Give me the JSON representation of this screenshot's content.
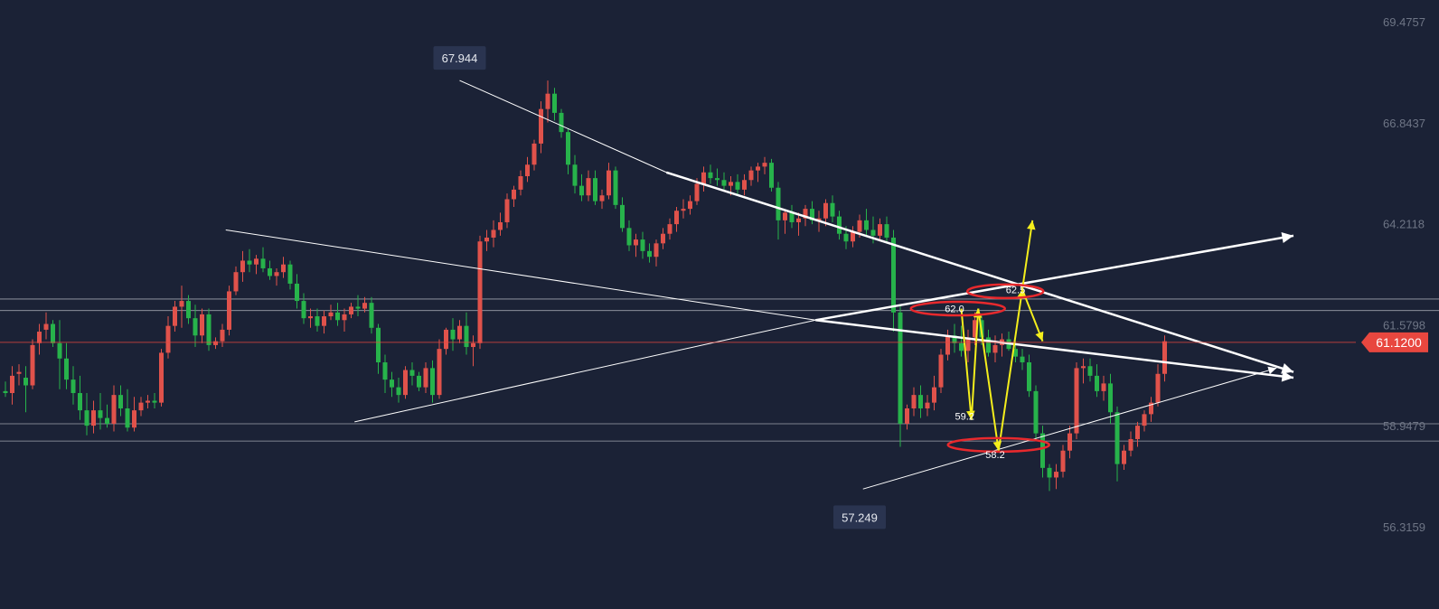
{
  "colors": {
    "background": "#1b2236",
    "up": "#e0524b",
    "down": "#27b34b",
    "trendline": "#ffffff",
    "projection": "#f4ee1c",
    "marker_ellipse": "#e8292d",
    "current_price": "#e8473f",
    "axis_text": "#6e7585"
  },
  "chart_data": {
    "type": "candlestick",
    "y_axis": {
      "position": "right",
      "ticks": [
        "69.4757",
        "66.8437",
        "64.2118",
        "61.5798",
        "58.9479",
        "56.3159"
      ],
      "ylim": [
        55.7,
        70.1
      ]
    },
    "grid": false,
    "current_price": {
      "label": "61.1200",
      "value": 61.12
    },
    "high_callout": {
      "label": "67.944",
      "value": 67.944,
      "bar": 67
    },
    "low_callout": {
      "label": "57.249",
      "value": 57.249,
      "bar": 126
    },
    "horizontal_levels": [
      62.25,
      61.95,
      59.0,
      58.55
    ],
    "level_labels": [
      {
        "text": "62.5",
        "value": 62.5,
        "bar": 149
      },
      {
        "text": "62.0",
        "value": 62.0,
        "bar": 140
      },
      {
        "text": "59.2",
        "value": 59.2,
        "bar": 141.5
      },
      {
        "text": "58.2",
        "value": 58.2,
        "bar": 146
      }
    ],
    "candles": [
      [
        59.85,
        60.1,
        59.7,
        59.8
      ],
      [
        59.8,
        60.5,
        59.5,
        60.25
      ],
      [
        60.3,
        60.55,
        60.0,
        60.35
      ],
      [
        60.2,
        60.5,
        59.3,
        60.0
      ],
      [
        60.0,
        61.2,
        59.9,
        61.05
      ],
      [
        61.1,
        61.6,
        60.8,
        61.4
      ],
      [
        61.45,
        61.9,
        61.2,
        61.6
      ],
      [
        61.6,
        61.7,
        61.0,
        61.1
      ],
      [
        61.1,
        61.7,
        59.9,
        60.7
      ],
      [
        60.7,
        61.1,
        59.9,
        60.15
      ],
      [
        60.15,
        60.5,
        59.5,
        59.8
      ],
      [
        59.8,
        60.25,
        59.1,
        59.35
      ],
      [
        59.35,
        59.8,
        58.7,
        58.95
      ],
      [
        58.95,
        59.6,
        58.75,
        59.35
      ],
      [
        59.35,
        59.8,
        58.85,
        59.15
      ],
      [
        59.15,
        59.5,
        58.9,
        59.0
      ],
      [
        59.0,
        60.0,
        58.8,
        59.75
      ],
      [
        59.75,
        60.0,
        59.2,
        59.4
      ],
      [
        59.4,
        59.9,
        58.8,
        58.9
      ],
      [
        58.9,
        59.7,
        58.8,
        59.35
      ],
      [
        59.35,
        59.7,
        59.2,
        59.55
      ],
      [
        59.55,
        59.75,
        59.4,
        59.6
      ],
      [
        59.6,
        59.8,
        59.4,
        59.55
      ],
      [
        59.55,
        60.95,
        59.45,
        60.85
      ],
      [
        60.85,
        61.8,
        60.7,
        61.55
      ],
      [
        61.55,
        62.2,
        61.4,
        62.05
      ],
      [
        62.05,
        62.6,
        61.5,
        62.2
      ],
      [
        62.2,
        62.35,
        61.6,
        61.75
      ],
      [
        61.75,
        62.1,
        61.0,
        61.3
      ],
      [
        61.3,
        62.0,
        61.1,
        61.85
      ],
      [
        61.85,
        62.0,
        60.9,
        61.05
      ],
      [
        61.05,
        61.25,
        60.95,
        61.15
      ],
      [
        61.15,
        61.6,
        61.0,
        61.45
      ],
      [
        61.45,
        62.6,
        61.3,
        62.45
      ],
      [
        62.45,
        63.1,
        62.35,
        62.95
      ],
      [
        62.95,
        63.5,
        62.7,
        63.25
      ],
      [
        63.25,
        63.55,
        62.95,
        63.15
      ],
      [
        63.15,
        63.4,
        62.9,
        63.3
      ],
      [
        63.3,
        63.6,
        62.95,
        63.05
      ],
      [
        63.05,
        63.25,
        62.75,
        62.85
      ],
      [
        62.85,
        63.05,
        62.6,
        62.95
      ],
      [
        62.95,
        63.35,
        62.8,
        63.15
      ],
      [
        63.15,
        63.25,
        62.5,
        62.65
      ],
      [
        62.65,
        62.9,
        62.0,
        62.2
      ],
      [
        62.2,
        62.4,
        61.6,
        61.75
      ],
      [
        61.75,
        62.0,
        61.5,
        61.8
      ],
      [
        61.8,
        62.0,
        61.4,
        61.55
      ],
      [
        61.55,
        61.95,
        61.35,
        61.8
      ],
      [
        61.8,
        62.1,
        61.7,
        61.9
      ],
      [
        61.9,
        62.15,
        61.55,
        61.7
      ],
      [
        61.7,
        62.0,
        61.4,
        61.85
      ],
      [
        61.85,
        62.15,
        61.75,
        62.05
      ],
      [
        62.05,
        62.35,
        61.8,
        62.0
      ],
      [
        62.0,
        62.3,
        61.9,
        62.15
      ],
      [
        62.15,
        62.3,
        61.35,
        61.5
      ],
      [
        61.5,
        61.6,
        60.3,
        60.6
      ],
      [
        60.6,
        60.8,
        59.8,
        60.15
      ],
      [
        60.15,
        60.35,
        59.7,
        59.95
      ],
      [
        59.95,
        60.2,
        59.55,
        59.75
      ],
      [
        59.75,
        60.5,
        59.65,
        60.4
      ],
      [
        60.4,
        60.6,
        60.0,
        60.25
      ],
      [
        60.25,
        60.35,
        59.85,
        59.95
      ],
      [
        59.95,
        60.6,
        59.8,
        60.45
      ],
      [
        60.45,
        60.65,
        59.55,
        59.75
      ],
      [
        59.75,
        61.2,
        59.65,
        60.95
      ],
      [
        60.95,
        61.5,
        60.8,
        61.45
      ],
      [
        61.45,
        61.75,
        60.9,
        61.2
      ],
      [
        61.2,
        61.7,
        61.1,
        61.55
      ],
      [
        61.55,
        61.9,
        60.8,
        61.0
      ],
      [
        61.0,
        61.3,
        60.5,
        61.1
      ],
      [
        61.1,
        63.9,
        60.95,
        63.75
      ],
      [
        63.75,
        64.05,
        63.5,
        63.85
      ],
      [
        63.85,
        64.3,
        63.6,
        64.05
      ],
      [
        64.05,
        64.5,
        63.9,
        64.25
      ],
      [
        64.25,
        65.0,
        64.1,
        64.85
      ],
      [
        64.85,
        65.2,
        64.65,
        65.1
      ],
      [
        65.1,
        65.6,
        64.95,
        65.45
      ],
      [
        65.45,
        65.95,
        65.3,
        65.75
      ],
      [
        65.75,
        66.4,
        65.6,
        66.3
      ],
      [
        66.3,
        67.4,
        66.05,
        67.2
      ],
      [
        67.2,
        67.944,
        66.85,
        67.6
      ],
      [
        67.6,
        67.75,
        66.9,
        67.1
      ],
      [
        67.1,
        67.2,
        66.45,
        66.6
      ],
      [
        66.6,
        66.7,
        65.5,
        65.75
      ],
      [
        65.75,
        66.0,
        65.0,
        65.2
      ],
      [
        65.2,
        65.5,
        64.8,
        64.95
      ],
      [
        64.95,
        65.6,
        64.8,
        65.4
      ],
      [
        65.4,
        65.6,
        64.7,
        64.8
      ],
      [
        64.8,
        65.1,
        64.6,
        64.95
      ],
      [
        64.95,
        65.8,
        64.85,
        65.6
      ],
      [
        65.6,
        65.7,
        64.6,
        64.7
      ],
      [
        64.7,
        64.9,
        64.0,
        64.1
      ],
      [
        64.1,
        64.3,
        63.5,
        63.65
      ],
      [
        63.65,
        63.95,
        63.35,
        63.8
      ],
      [
        63.8,
        64.0,
        63.3,
        63.5
      ],
      [
        63.5,
        63.7,
        63.2,
        63.35
      ],
      [
        63.35,
        63.8,
        63.1,
        63.7
      ],
      [
        63.7,
        64.1,
        63.55,
        63.95
      ],
      [
        63.95,
        64.35,
        63.8,
        64.2
      ],
      [
        64.2,
        64.65,
        64.0,
        64.55
      ],
      [
        64.55,
        64.85,
        64.35,
        64.6
      ],
      [
        64.6,
        64.95,
        64.45,
        64.8
      ],
      [
        64.8,
        65.4,
        64.7,
        65.25
      ],
      [
        65.25,
        65.7,
        65.05,
        65.55
      ],
      [
        65.55,
        65.75,
        65.25,
        65.4
      ],
      [
        65.4,
        65.65,
        65.2,
        65.35
      ],
      [
        65.35,
        65.55,
        65.1,
        65.2
      ],
      [
        65.2,
        65.45,
        64.95,
        65.3
      ],
      [
        65.3,
        65.5,
        64.95,
        65.1
      ],
      [
        65.1,
        65.5,
        64.95,
        65.35
      ],
      [
        65.35,
        65.7,
        65.2,
        65.6
      ],
      [
        65.6,
        65.8,
        65.3,
        65.7
      ],
      [
        65.7,
        65.95,
        65.5,
        65.8
      ],
      [
        65.8,
        65.9,
        65.05,
        65.15
      ],
      [
        65.15,
        65.3,
        63.8,
        64.3
      ],
      [
        64.3,
        64.55,
        63.95,
        64.5
      ],
      [
        64.5,
        64.7,
        64.1,
        64.25
      ],
      [
        64.25,
        64.5,
        63.9,
        64.35
      ],
      [
        64.35,
        64.7,
        64.15,
        64.6
      ],
      [
        64.6,
        64.8,
        64.2,
        64.3
      ],
      [
        64.3,
        64.55,
        64.0,
        64.35
      ],
      [
        64.35,
        64.85,
        64.15,
        64.75
      ],
      [
        64.75,
        64.95,
        64.25,
        64.4
      ],
      [
        64.4,
        64.55,
        63.8,
        63.95
      ],
      [
        63.95,
        64.15,
        63.55,
        63.75
      ],
      [
        63.75,
        64.15,
        63.6,
        64.0
      ],
      [
        64.0,
        64.45,
        63.85,
        64.3
      ],
      [
        64.3,
        64.6,
        63.9,
        64.05
      ],
      [
        64.05,
        64.4,
        63.7,
        63.9
      ],
      [
        63.9,
        64.35,
        63.75,
        64.2
      ],
      [
        64.2,
        64.4,
        63.75,
        63.85
      ],
      [
        63.85,
        64.05,
        61.4,
        61.9
      ],
      [
        61.9,
        62.1,
        58.4,
        59.0
      ],
      [
        59.0,
        59.5,
        58.85,
        59.4
      ],
      [
        59.4,
        59.95,
        59.2,
        59.75
      ],
      [
        59.75,
        60.0,
        59.15,
        59.4
      ],
      [
        59.4,
        59.75,
        59.2,
        59.55
      ],
      [
        59.55,
        60.25,
        59.35,
        59.95
      ],
      [
        59.95,
        60.95,
        59.8,
        60.8
      ],
      [
        60.8,
        61.45,
        60.65,
        61.3
      ],
      [
        61.3,
        61.6,
        60.85,
        61.1
      ],
      [
        61.1,
        61.55,
        60.75,
        60.9
      ],
      [
        60.9,
        61.45,
        60.6,
        61.25
      ],
      [
        61.25,
        61.9,
        61.05,
        61.7
      ],
      [
        61.7,
        61.85,
        61.05,
        61.25
      ],
      [
        61.25,
        61.45,
        60.75,
        60.85
      ],
      [
        60.85,
        61.3,
        60.6,
        61.05
      ],
      [
        61.05,
        61.35,
        60.75,
        61.2
      ],
      [
        61.2,
        61.4,
        60.9,
        60.95
      ],
      [
        60.95,
        61.15,
        60.6,
        60.75
      ],
      [
        60.75,
        60.95,
        60.4,
        60.6
      ],
      [
        60.6,
        60.8,
        59.7,
        59.85
      ],
      [
        59.85,
        60.0,
        58.55,
        58.75
      ],
      [
        58.75,
        58.95,
        57.6,
        57.85
      ],
      [
        57.85,
        57.95,
        57.249,
        57.6
      ],
      [
        57.6,
        57.95,
        57.3,
        57.75
      ],
      [
        57.75,
        58.45,
        57.6,
        58.3
      ],
      [
        58.3,
        58.95,
        58.1,
        58.75
      ],
      [
        58.75,
        60.6,
        58.6,
        60.45
      ],
      [
        60.45,
        60.7,
        60.05,
        60.5
      ],
      [
        60.5,
        60.7,
        60.1,
        60.25
      ],
      [
        60.25,
        60.55,
        59.7,
        59.85
      ],
      [
        59.85,
        60.25,
        59.6,
        60.05
      ],
      [
        60.05,
        60.3,
        59.0,
        59.3
      ],
      [
        59.3,
        59.45,
        57.5,
        57.95
      ],
      [
        57.95,
        58.45,
        57.8,
        58.3
      ],
      [
        58.3,
        58.8,
        58.15,
        58.6
      ],
      [
        58.6,
        59.05,
        58.4,
        58.95
      ],
      [
        58.95,
        59.35,
        58.8,
        59.25
      ],
      [
        59.25,
        59.7,
        59.05,
        59.55
      ],
      [
        59.55,
        60.55,
        59.45,
        60.3
      ],
      [
        60.3,
        61.3,
        60.1,
        61.15
      ]
    ],
    "trendlines": [
      {
        "from": [
          67,
          67.944
        ],
        "to": [
          97.5,
          65.55
        ],
        "thin": true
      },
      {
        "from": [
          97.5,
          65.55
        ],
        "to": [
          190,
          60.35
        ],
        "thin": false,
        "arrow": true
      },
      {
        "from": [
          32.5,
          64.05
        ],
        "to": [
          119.5,
          61.7
        ],
        "thin": true
      },
      {
        "from": [
          119.5,
          61.7
        ],
        "to": [
          190,
          60.2
        ],
        "thin": false,
        "arrow": true
      },
      {
        "from": [
          51.5,
          59.05
        ],
        "to": [
          119.5,
          61.7
        ],
        "thin": true
      },
      {
        "from": [
          119.5,
          61.7
        ],
        "to": [
          190,
          63.9
        ],
        "thin": false,
        "arrow": true
      },
      {
        "from": [
          126.5,
          57.3
        ],
        "to": [
          187.5,
          60.45
        ],
        "thin": true,
        "arrow": true
      }
    ],
    "projection_path": [
      [
        141,
        62.0
      ],
      [
        142.5,
        59.1
      ],
      [
        143.5,
        62.0
      ],
      [
        146.5,
        58.3
      ],
      [
        150,
        62.5
      ],
      [
        151.5,
        64.3
      ]
    ],
    "projection_branch": [
      [
        150,
        62.5
      ],
      [
        153,
        61.15
      ]
    ],
    "marker_ellipses": [
      [
        147.5,
        62.45
      ],
      [
        140.5,
        62.0
      ],
      [
        146.5,
        58.45
      ]
    ]
  }
}
